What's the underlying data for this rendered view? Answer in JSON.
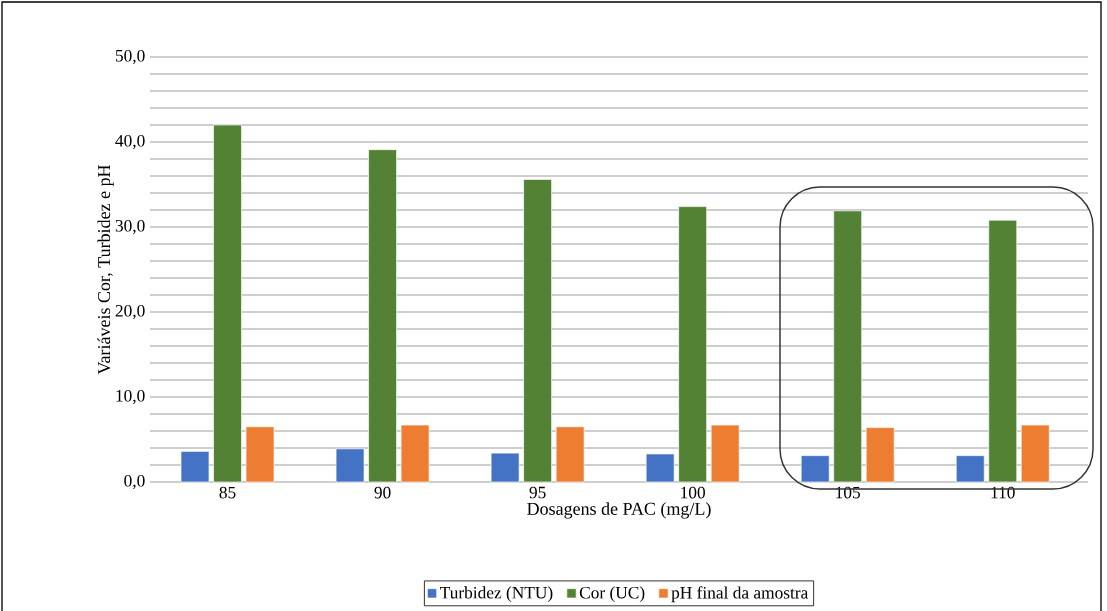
{
  "chart_data": {
    "type": "bar",
    "xlabel": "Dosagens de PAC (mg/L)",
    "ylabel": "Variáveis Cor, Turbidez e pH",
    "categories": [
      "85",
      "90",
      "95",
      "100",
      "105",
      "110"
    ],
    "series": [
      {
        "name": "Turbidez (NTU)",
        "color": "#4472c4",
        "values": [
          3.6,
          3.9,
          3.4,
          3.3,
          3.1,
          3.1
        ]
      },
      {
        "name": "Cor (UC)",
        "color": "#548235",
        "values": [
          42.0,
          39.1,
          35.6,
          32.4,
          31.9,
          30.8
        ]
      },
      {
        "name": "pH final da amostra",
        "color": "#ed7d31",
        "values": [
          6.5,
          6.7,
          6.5,
          6.7,
          6.4,
          6.7
        ]
      }
    ],
    "ylim": [
      0,
      50
    ],
    "yticks": [
      {
        "value": 0,
        "label": "0,0"
      },
      {
        "value": 2,
        "label": null
      },
      {
        "value": 4,
        "label": null
      },
      {
        "value": 6,
        "label": null
      },
      {
        "value": 8,
        "label": null
      },
      {
        "value": 10,
        "label": "10,0"
      },
      {
        "value": 12,
        "label": null
      },
      {
        "value": 14,
        "label": null
      },
      {
        "value": 16,
        "label": null
      },
      {
        "value": 18,
        "label": null
      },
      {
        "value": 20,
        "label": "20,0"
      },
      {
        "value": 22,
        "label": null
      },
      {
        "value": 24,
        "label": null
      },
      {
        "value": 26,
        "label": null
      },
      {
        "value": 28,
        "label": null
      },
      {
        "value": 30,
        "label": "30,0"
      },
      {
        "value": 32,
        "label": null
      },
      {
        "value": 34,
        "label": null
      },
      {
        "value": 36,
        "label": null
      },
      {
        "value": 38,
        "label": null
      },
      {
        "value": 40,
        "label": "40,0"
      },
      {
        "value": 42,
        "label": null
      },
      {
        "value": 44,
        "label": null
      },
      {
        "value": 46,
        "label": null
      },
      {
        "value": 48,
        "label": null
      },
      {
        "value": 50,
        "label": "50,0"
      }
    ],
    "grid": "y",
    "legend": "bottom"
  }
}
